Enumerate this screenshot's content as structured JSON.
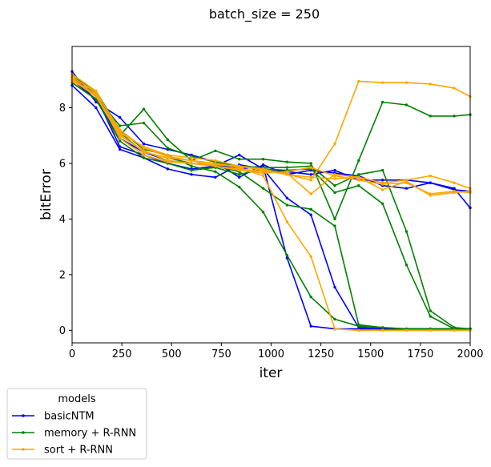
{
  "chart_data": {
    "type": "line",
    "title": "batch_size = 250",
    "xlabel": "iter",
    "ylabel": "bitError",
    "xlim": [
      0,
      2000
    ],
    "ylim": [
      -0.45,
      10.2
    ],
    "xticks": [
      0,
      250,
      500,
      750,
      1000,
      1250,
      1500,
      1750,
      2000
    ],
    "yticks": [
      0,
      2,
      4,
      6,
      8
    ],
    "grid": false,
    "legend": {
      "title": "models",
      "placement": "below-left",
      "entries": [
        {
          "name": "basicNTM",
          "color": "#0000ff"
        },
        {
          "name": "memory + R-RNN",
          "color": "#008000"
        },
        {
          "name": "sort + R-RNN",
          "color": "#ffa500"
        }
      ]
    },
    "x": [
      0,
      120,
      240,
      360,
      480,
      600,
      720,
      840,
      960,
      1080,
      1200,
      1320,
      1440,
      1560,
      1680,
      1800,
      1920,
      2000
    ],
    "series": [
      {
        "name": "basicNTM",
        "color": "#0000ff",
        "values": [
          9.3,
          8.2,
          7.65,
          6.7,
          6.5,
          6.3,
          6.05,
          5.5,
          5.95,
          5.6,
          5.75,
          5.65,
          5.55,
          5.2,
          5.1,
          5.3,
          5.05,
          5.0
        ]
      },
      {
        "name": "basicNTM",
        "color": "#0000ff",
        "values": [
          9.1,
          8.4,
          6.6,
          6.3,
          6.0,
          5.8,
          5.9,
          6.3,
          5.8,
          5.7,
          5.6,
          5.75,
          5.4,
          5.4,
          5.4,
          5.3,
          5.1,
          4.4
        ]
      },
      {
        "name": "basicNTM",
        "color": "#0000ff",
        "values": [
          8.8,
          8.0,
          6.5,
          6.2,
          5.8,
          5.6,
          5.5,
          5.95,
          5.8,
          4.75,
          4.15,
          1.55,
          0.1,
          0.05,
          0.05,
          0.05,
          0.05,
          0.05
        ]
      },
      {
        "name": "basicNTM",
        "color": "#0000ff",
        "values": [
          9.0,
          8.3,
          6.9,
          6.4,
          6.1,
          6.0,
          5.95,
          5.8,
          5.9,
          2.6,
          0.15,
          0.05,
          0.05,
          0.05,
          0.05,
          0.05,
          0.05,
          0.05
        ]
      },
      {
        "name": "memory + R-RNN",
        "color": "#008000",
        "values": [
          9.2,
          8.5,
          7.0,
          7.95,
          6.85,
          6.1,
          6.45,
          6.15,
          6.15,
          6.05,
          6.0,
          4.0,
          6.1,
          8.2,
          8.1,
          7.7,
          7.7,
          7.75
        ]
      },
      {
        "name": "memory + R-RNN",
        "color": "#008000",
        "values": [
          9.0,
          8.4,
          7.35,
          7.45,
          6.55,
          6.25,
          6.05,
          5.9,
          5.85,
          5.85,
          5.9,
          5.2,
          5.6,
          5.75,
          3.55,
          0.7,
          0.1,
          0.05
        ]
      },
      {
        "name": "memory + R-RNN",
        "color": "#008000",
        "values": [
          8.9,
          8.3,
          6.8,
          6.2,
          6.0,
          5.75,
          5.85,
          5.6,
          5.8,
          5.75,
          5.8,
          4.95,
          5.2,
          4.55,
          2.35,
          0.5,
          0.05,
          0.05
        ]
      },
      {
        "name": "memory + R-RNN",
        "color": "#008000",
        "values": [
          9.1,
          8.6,
          7.2,
          6.5,
          6.3,
          5.9,
          5.7,
          5.15,
          4.25,
          2.7,
          1.2,
          0.4,
          0.15,
          0.1,
          0.05,
          0.05,
          0.05,
          0.05
        ]
      },
      {
        "name": "memory + R-RNN",
        "color": "#008000",
        "values": [
          9.0,
          8.5,
          7.1,
          6.4,
          6.2,
          6.0,
          5.9,
          5.7,
          5.1,
          4.5,
          4.35,
          3.75,
          0.2,
          0.1,
          0.05,
          0.05,
          0.05,
          0.05
        ]
      },
      {
        "name": "sort + R-RNN",
        "color": "#ffa500",
        "values": [
          9.2,
          8.6,
          7.1,
          6.6,
          6.3,
          6.2,
          6.1,
          5.9,
          5.75,
          5.6,
          5.4,
          6.7,
          8.95,
          8.9,
          8.9,
          8.85,
          8.7,
          8.4
        ]
      },
      {
        "name": "sort + R-RNN",
        "color": "#ffa500",
        "values": [
          9.0,
          8.4,
          7.0,
          6.45,
          6.1,
          6.0,
          5.9,
          5.8,
          5.7,
          5.65,
          4.9,
          5.6,
          5.5,
          5.3,
          5.4,
          5.55,
          5.3,
          5.1
        ]
      },
      {
        "name": "sort + R-RNN",
        "color": "#ffa500",
        "values": [
          8.95,
          8.5,
          6.9,
          6.3,
          6.05,
          6.0,
          5.95,
          5.9,
          5.8,
          5.6,
          5.5,
          5.45,
          5.5,
          5.05,
          5.35,
          4.85,
          4.95,
          5.0
        ]
      },
      {
        "name": "sort + R-RNN",
        "color": "#ffa500",
        "values": [
          9.1,
          8.55,
          7.2,
          6.55,
          6.25,
          6.1,
          6.0,
          5.85,
          5.55,
          3.9,
          2.65,
          0.05,
          0.0,
          0.0,
          0.0,
          0.0,
          0.0,
          0.0
        ]
      },
      {
        "name": "sort + R-RNN",
        "color": "#ffa500",
        "values": [
          9.05,
          8.45,
          7.05,
          6.4,
          6.2,
          6.1,
          5.9,
          5.75,
          5.65,
          5.7,
          5.85,
          5.55,
          5.4,
          5.25,
          5.3,
          4.9,
          5.0,
          4.95
        ]
      }
    ]
  }
}
